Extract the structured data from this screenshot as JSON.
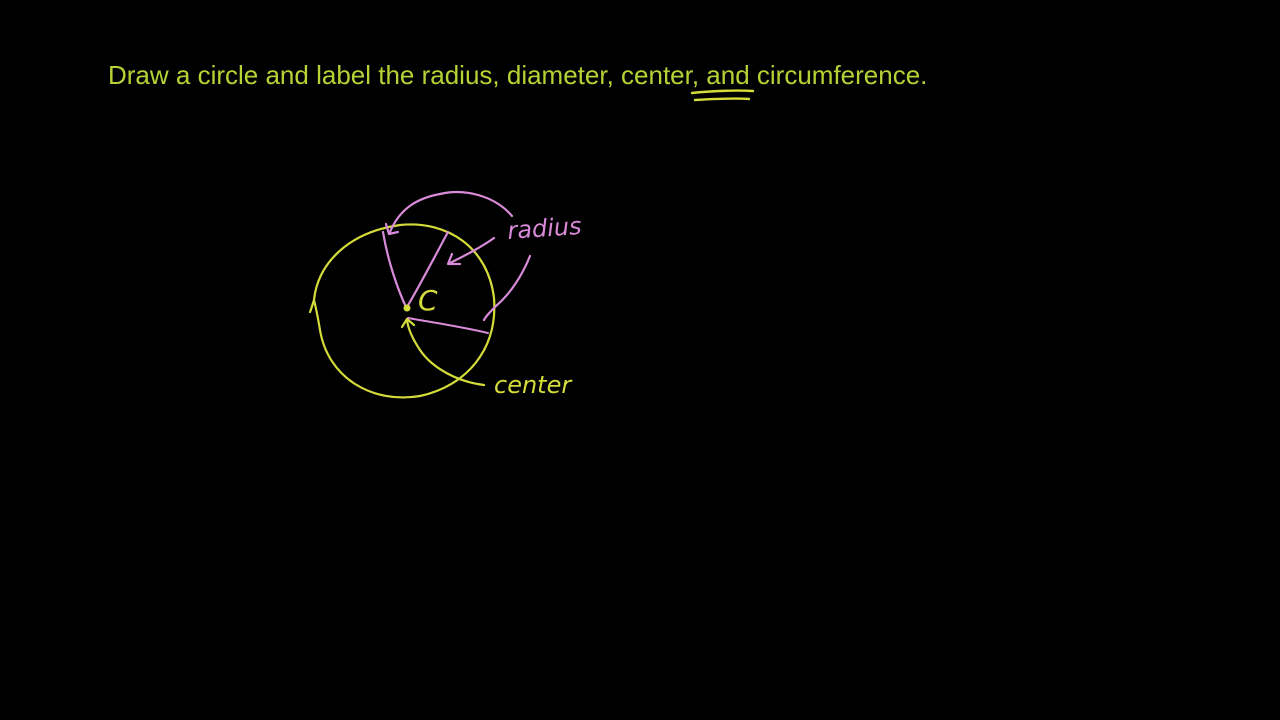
{
  "colors": {
    "background": "#000000",
    "prompt": "#b5d334",
    "circle": "#d4dc3a",
    "radius_ink": "#d98bd9"
  },
  "prompt": {
    "before": "Draw a circle and label the radius, diameter, ",
    "highlight": "center",
    "after": ", and circumference."
  },
  "labels": {
    "center_point": "C",
    "radius": "radius",
    "center": "center"
  }
}
